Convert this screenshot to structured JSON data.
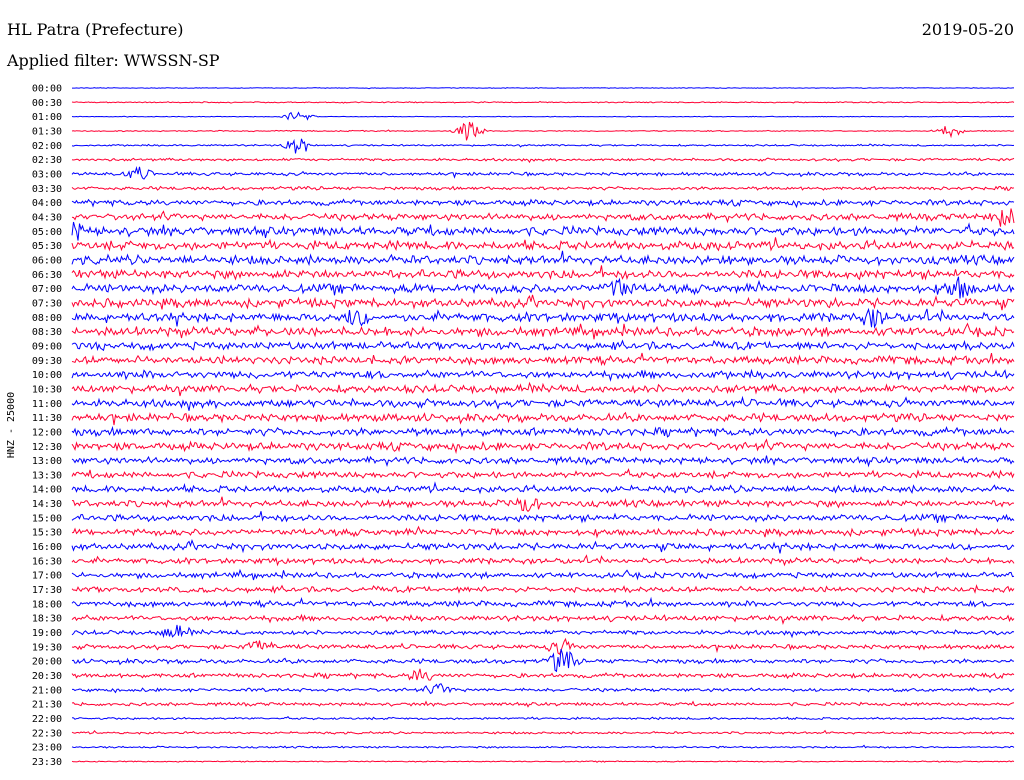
{
  "header": {
    "station": "HL Patra (Prefecture)",
    "date": "2019-05-20",
    "filter": "Applied filter: WWSSN-SP"
  },
  "chart_data": {
    "type": "line",
    "title": "HL Patra (Prefecture)",
    "ylabel": "HNZ - 25000",
    "row_labels": [
      "00:00",
      "00:30",
      "01:00",
      "01:30",
      "02:00",
      "02:30",
      "03:00",
      "03:30",
      "04:00",
      "04:30",
      "05:00",
      "05:30",
      "06:00",
      "06:30",
      "07:00",
      "07:30",
      "08:00",
      "08:30",
      "09:00",
      "09:30",
      "10:00",
      "10:30",
      "11:00",
      "11:30",
      "12:00",
      "12:30",
      "13:00",
      "13:30",
      "14:00",
      "14:30",
      "15:00",
      "15:30",
      "16:00",
      "16:30",
      "17:00",
      "17:30",
      "18:00",
      "18:30",
      "19:00",
      "19:30",
      "20:00",
      "20:30",
      "21:00",
      "21:30",
      "22:00",
      "22:30",
      "23:00",
      "23:30"
    ],
    "series_colors": [
      "#0000ff",
      "#ff0033"
    ],
    "noise_level": [
      0.3,
      0.5,
      0.3,
      0.5,
      0.8,
      1.2,
      1.5,
      1.5,
      2.5,
      3.0,
      4.0,
      4.0,
      4.0,
      4.0,
      4.0,
      4.0,
      4.0,
      4.0,
      3.5,
      3.5,
      3.5,
      3.5,
      3.5,
      3.5,
      3.5,
      3.5,
      3.0,
      3.0,
      3.0,
      3.0,
      3.0,
      3.0,
      3.0,
      2.5,
      2.5,
      2.5,
      2.5,
      2.5,
      2.0,
      2.0,
      2.0,
      2.0,
      1.5,
      1.5,
      1.0,
      1.0,
      0.8,
      0.5
    ],
    "events": [
      {
        "row": 2,
        "pos": 0.24,
        "amp": 6
      },
      {
        "row": 3,
        "pos": 0.42,
        "amp": 10
      },
      {
        "row": 3,
        "pos": 0.93,
        "amp": 6
      },
      {
        "row": 4,
        "pos": 0.24,
        "amp": 9
      },
      {
        "row": 6,
        "pos": 0.07,
        "amp": 6
      },
      {
        "row": 9,
        "pos": 0.99,
        "amp": 9
      },
      {
        "row": 10,
        "pos": 0.0,
        "amp": 8
      },
      {
        "row": 14,
        "pos": 0.58,
        "amp": 9
      },
      {
        "row": 14,
        "pos": 0.94,
        "amp": 9
      },
      {
        "row": 16,
        "pos": 0.3,
        "amp": 7
      },
      {
        "row": 16,
        "pos": 0.85,
        "amp": 7
      },
      {
        "row": 29,
        "pos": 0.48,
        "amp": 8
      },
      {
        "row": 39,
        "pos": 0.2,
        "amp": 6
      },
      {
        "row": 39,
        "pos": 0.52,
        "amp": 7
      },
      {
        "row": 40,
        "pos": 0.52,
        "amp": 12
      },
      {
        "row": 41,
        "pos": 0.37,
        "amp": 6
      },
      {
        "row": 42,
        "pos": 0.39,
        "amp": 5
      },
      {
        "row": 38,
        "pos": 0.11,
        "amp": 6
      }
    ]
  }
}
